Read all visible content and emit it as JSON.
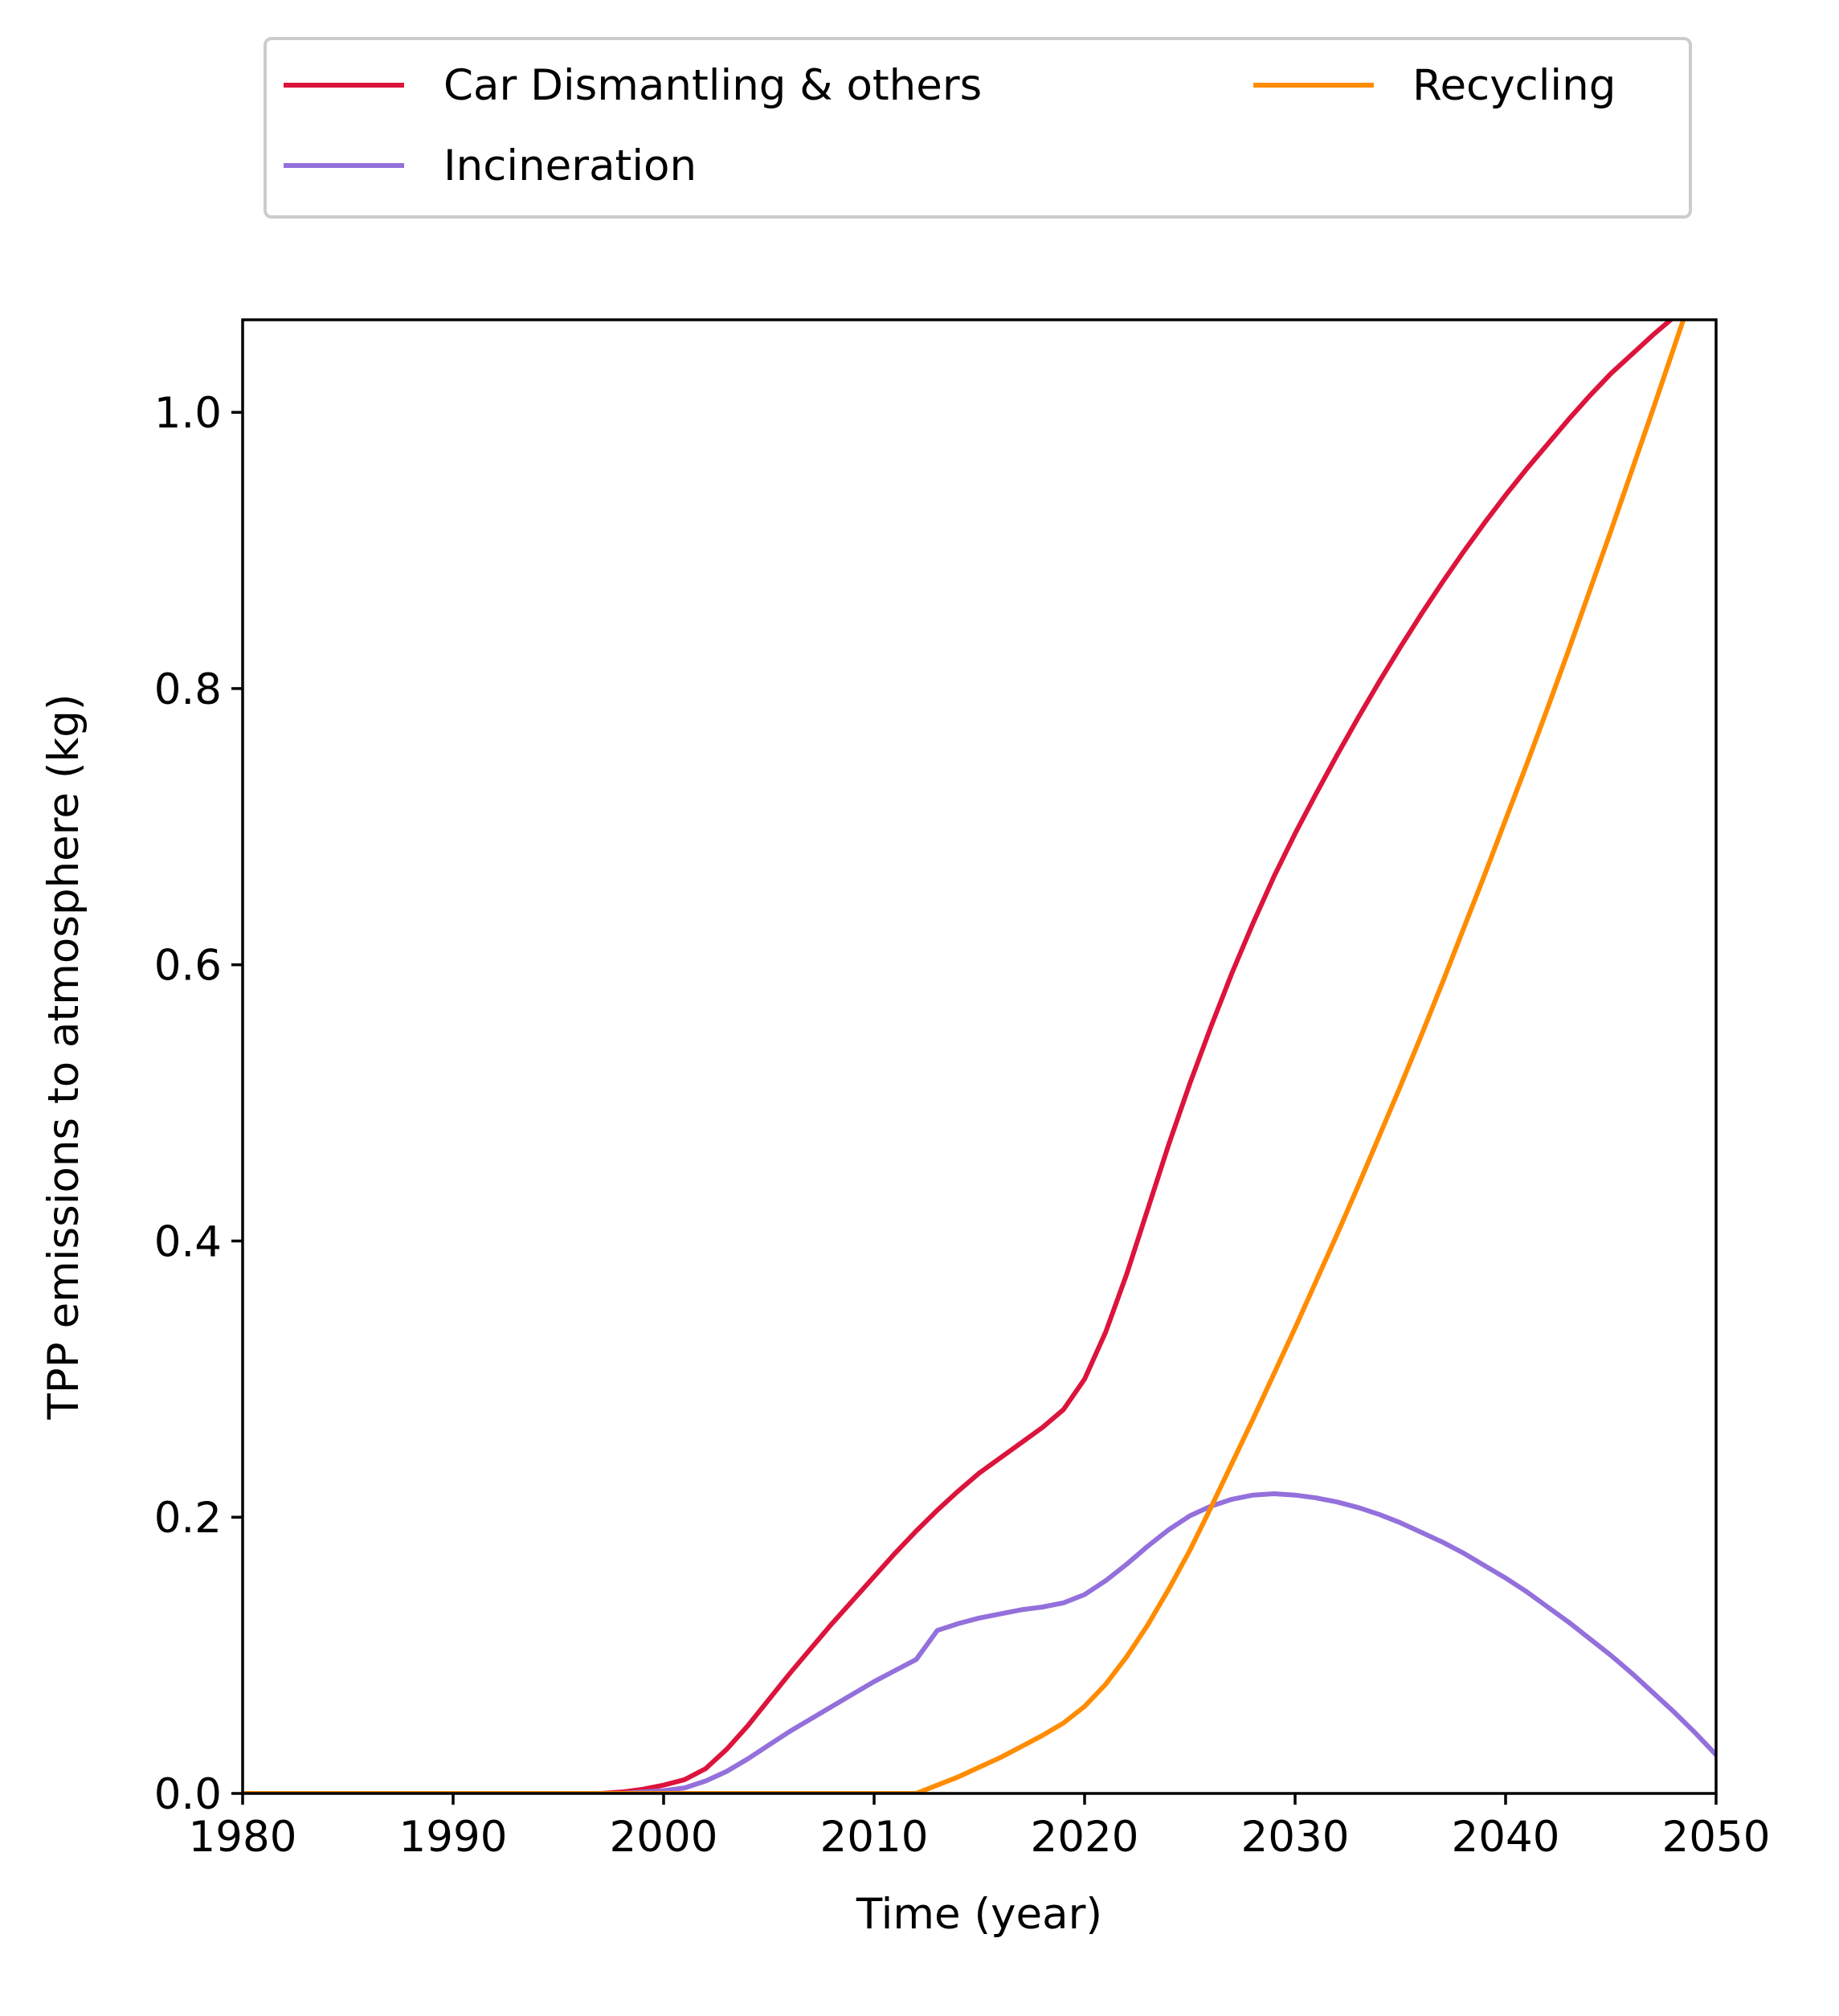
{
  "chart_data": {
    "type": "line",
    "title": "",
    "xlabel": "Time (year)",
    "ylabel": "TPP emissions to atmosphere (kg)",
    "xlim": [
      1980,
      2050
    ],
    "ylim": [
      0,
      1.067
    ],
    "xticks": [
      "1980",
      "1990",
      "2000",
      "2010",
      "2020",
      "2030",
      "2040",
      "2050"
    ],
    "yticks": [
      "0.0",
      "0.2",
      "0.4",
      "0.6",
      "0.8",
      "1.0"
    ],
    "grid": false,
    "legend_position": "top-center, outside plot",
    "x": [
      1980,
      1995,
      1997,
      1998,
      1999,
      2000,
      2001,
      2002,
      2003,
      2004,
      2005,
      2006,
      2007,
      2008,
      2009,
      2010,
      2011,
      2012,
      2013,
      2014,
      2015,
      2016,
      2017,
      2018,
      2019,
      2020,
      2021,
      2022,
      2023,
      2024,
      2025,
      2026,
      2027,
      2028,
      2029,
      2030,
      2031,
      2032,
      2033,
      2034,
      2035,
      2036,
      2037,
      2038,
      2039,
      2040,
      2041,
      2042,
      2043,
      2044,
      2045,
      2046,
      2047,
      2048,
      2049,
      2050
    ],
    "series": [
      {
        "name": "Car Dismantling & others",
        "color": "#dc143c",
        "values": [
          0,
          0,
          0,
          0.001,
          0.003,
          0.006,
          0.01,
          0.018,
          0.032,
          0.049,
          0.068,
          0.087,
          0.105,
          0.123,
          0.14,
          0.157,
          0.174,
          0.19,
          0.205,
          0.219,
          0.232,
          0.243,
          0.254,
          0.265,
          0.278,
          0.3,
          0.334,
          0.376,
          0.423,
          0.47,
          0.514,
          0.555,
          0.594,
          0.63,
          0.664,
          0.695,
          0.724,
          0.752,
          0.779,
          0.805,
          0.83,
          0.854,
          0.877,
          0.899,
          0.92,
          0.94,
          0.959,
          0.977,
          0.995,
          1.012,
          1.028,
          1.042,
          1.056,
          1.069,
          1.082,
          1.095
        ]
      },
      {
        "name": "Incineration",
        "color": "#9370db",
        "values": [
          0,
          0,
          0,
          0,
          0.001,
          0.002,
          0.004,
          0.009,
          0.016,
          0.025,
          0.035,
          0.045,
          0.054,
          0.063,
          0.072,
          0.081,
          0.089,
          0.097,
          0.118,
          0.123,
          0.127,
          0.13,
          0.133,
          0.135,
          0.138,
          0.144,
          0.154,
          0.166,
          0.179,
          0.191,
          0.201,
          0.208,
          0.213,
          0.216,
          0.217,
          0.216,
          0.214,
          0.211,
          0.207,
          0.202,
          0.196,
          0.189,
          0.182,
          0.174,
          0.165,
          0.156,
          0.146,
          0.135,
          0.124,
          0.112,
          0.1,
          0.087,
          0.073,
          0.059,
          0.044,
          0.028
        ]
      },
      {
        "name": "Recycling",
        "color": "#ff8c00",
        "values": [
          0,
          0,
          0,
          0,
          0,
          0,
          0,
          0,
          0,
          0,
          0,
          0,
          0,
          0,
          0,
          0,
          0,
          0,
          0.006,
          0.012,
          0.019,
          0.026,
          0.034,
          0.042,
          0.051,
          0.063,
          0.079,
          0.099,
          0.122,
          0.148,
          0.176,
          0.207,
          0.239,
          0.271,
          0.304,
          0.337,
          0.371,
          0.405,
          0.44,
          0.476,
          0.512,
          0.549,
          0.587,
          0.626,
          0.665,
          0.705,
          0.745,
          0.786,
          0.828,
          0.871,
          0.914,
          0.958,
          1.002,
          1.047,
          1.092,
          1.137
        ]
      }
    ]
  }
}
